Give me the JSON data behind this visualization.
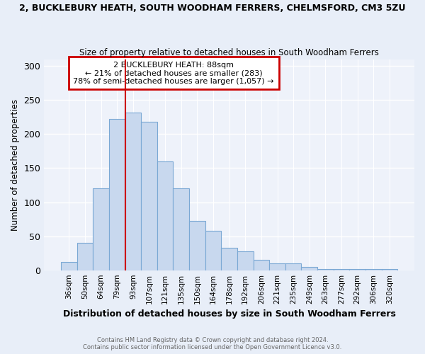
{
  "title": "2, BUCKLEBURY HEATH, SOUTH WOODHAM FERRERS, CHELMSFORD, CM3 5ZU",
  "subtitle": "Size of property relative to detached houses in South Woodham Ferrers",
  "xlabel": "Distribution of detached houses by size in South Woodham Ferrers",
  "ylabel": "Number of detached properties",
  "categories": [
    "36sqm",
    "50sqm",
    "64sqm",
    "79sqm",
    "93sqm",
    "107sqm",
    "121sqm",
    "135sqm",
    "150sqm",
    "164sqm",
    "178sqm",
    "192sqm",
    "206sqm",
    "221sqm",
    "235sqm",
    "249sqm",
    "263sqm",
    "277sqm",
    "292sqm",
    "306sqm",
    "320sqm"
  ],
  "values": [
    12,
    40,
    120,
    222,
    232,
    218,
    160,
    120,
    72,
    58,
    33,
    28,
    15,
    10,
    10,
    5,
    2,
    2,
    2,
    2,
    2
  ],
  "bar_color": "#c8d8ee",
  "bar_edge_color": "#7aa8d4",
  "marker_bin_index": 3.5,
  "marker_color": "#cc0000",
  "annotation_line1": "2 BUCKLEBURY HEATH: 88sqm",
  "annotation_line2": "← 21% of detached houses are smaller (283)",
  "annotation_line3": "78% of semi-detached houses are larger (1,057) →",
  "annotation_box_color": "#cc0000",
  "footer_line1": "Contains HM Land Registry data © Crown copyright and database right 2024.",
  "footer_line2": "Contains public sector information licensed under the Open Government Licence v3.0.",
  "ylim": [
    0,
    310
  ],
  "yticks": [
    0,
    50,
    100,
    150,
    200,
    250,
    300
  ],
  "bg_color": "#e8eef8",
  "plot_bg_color": "#eef2fa",
  "grid_color": "#ffffff"
}
